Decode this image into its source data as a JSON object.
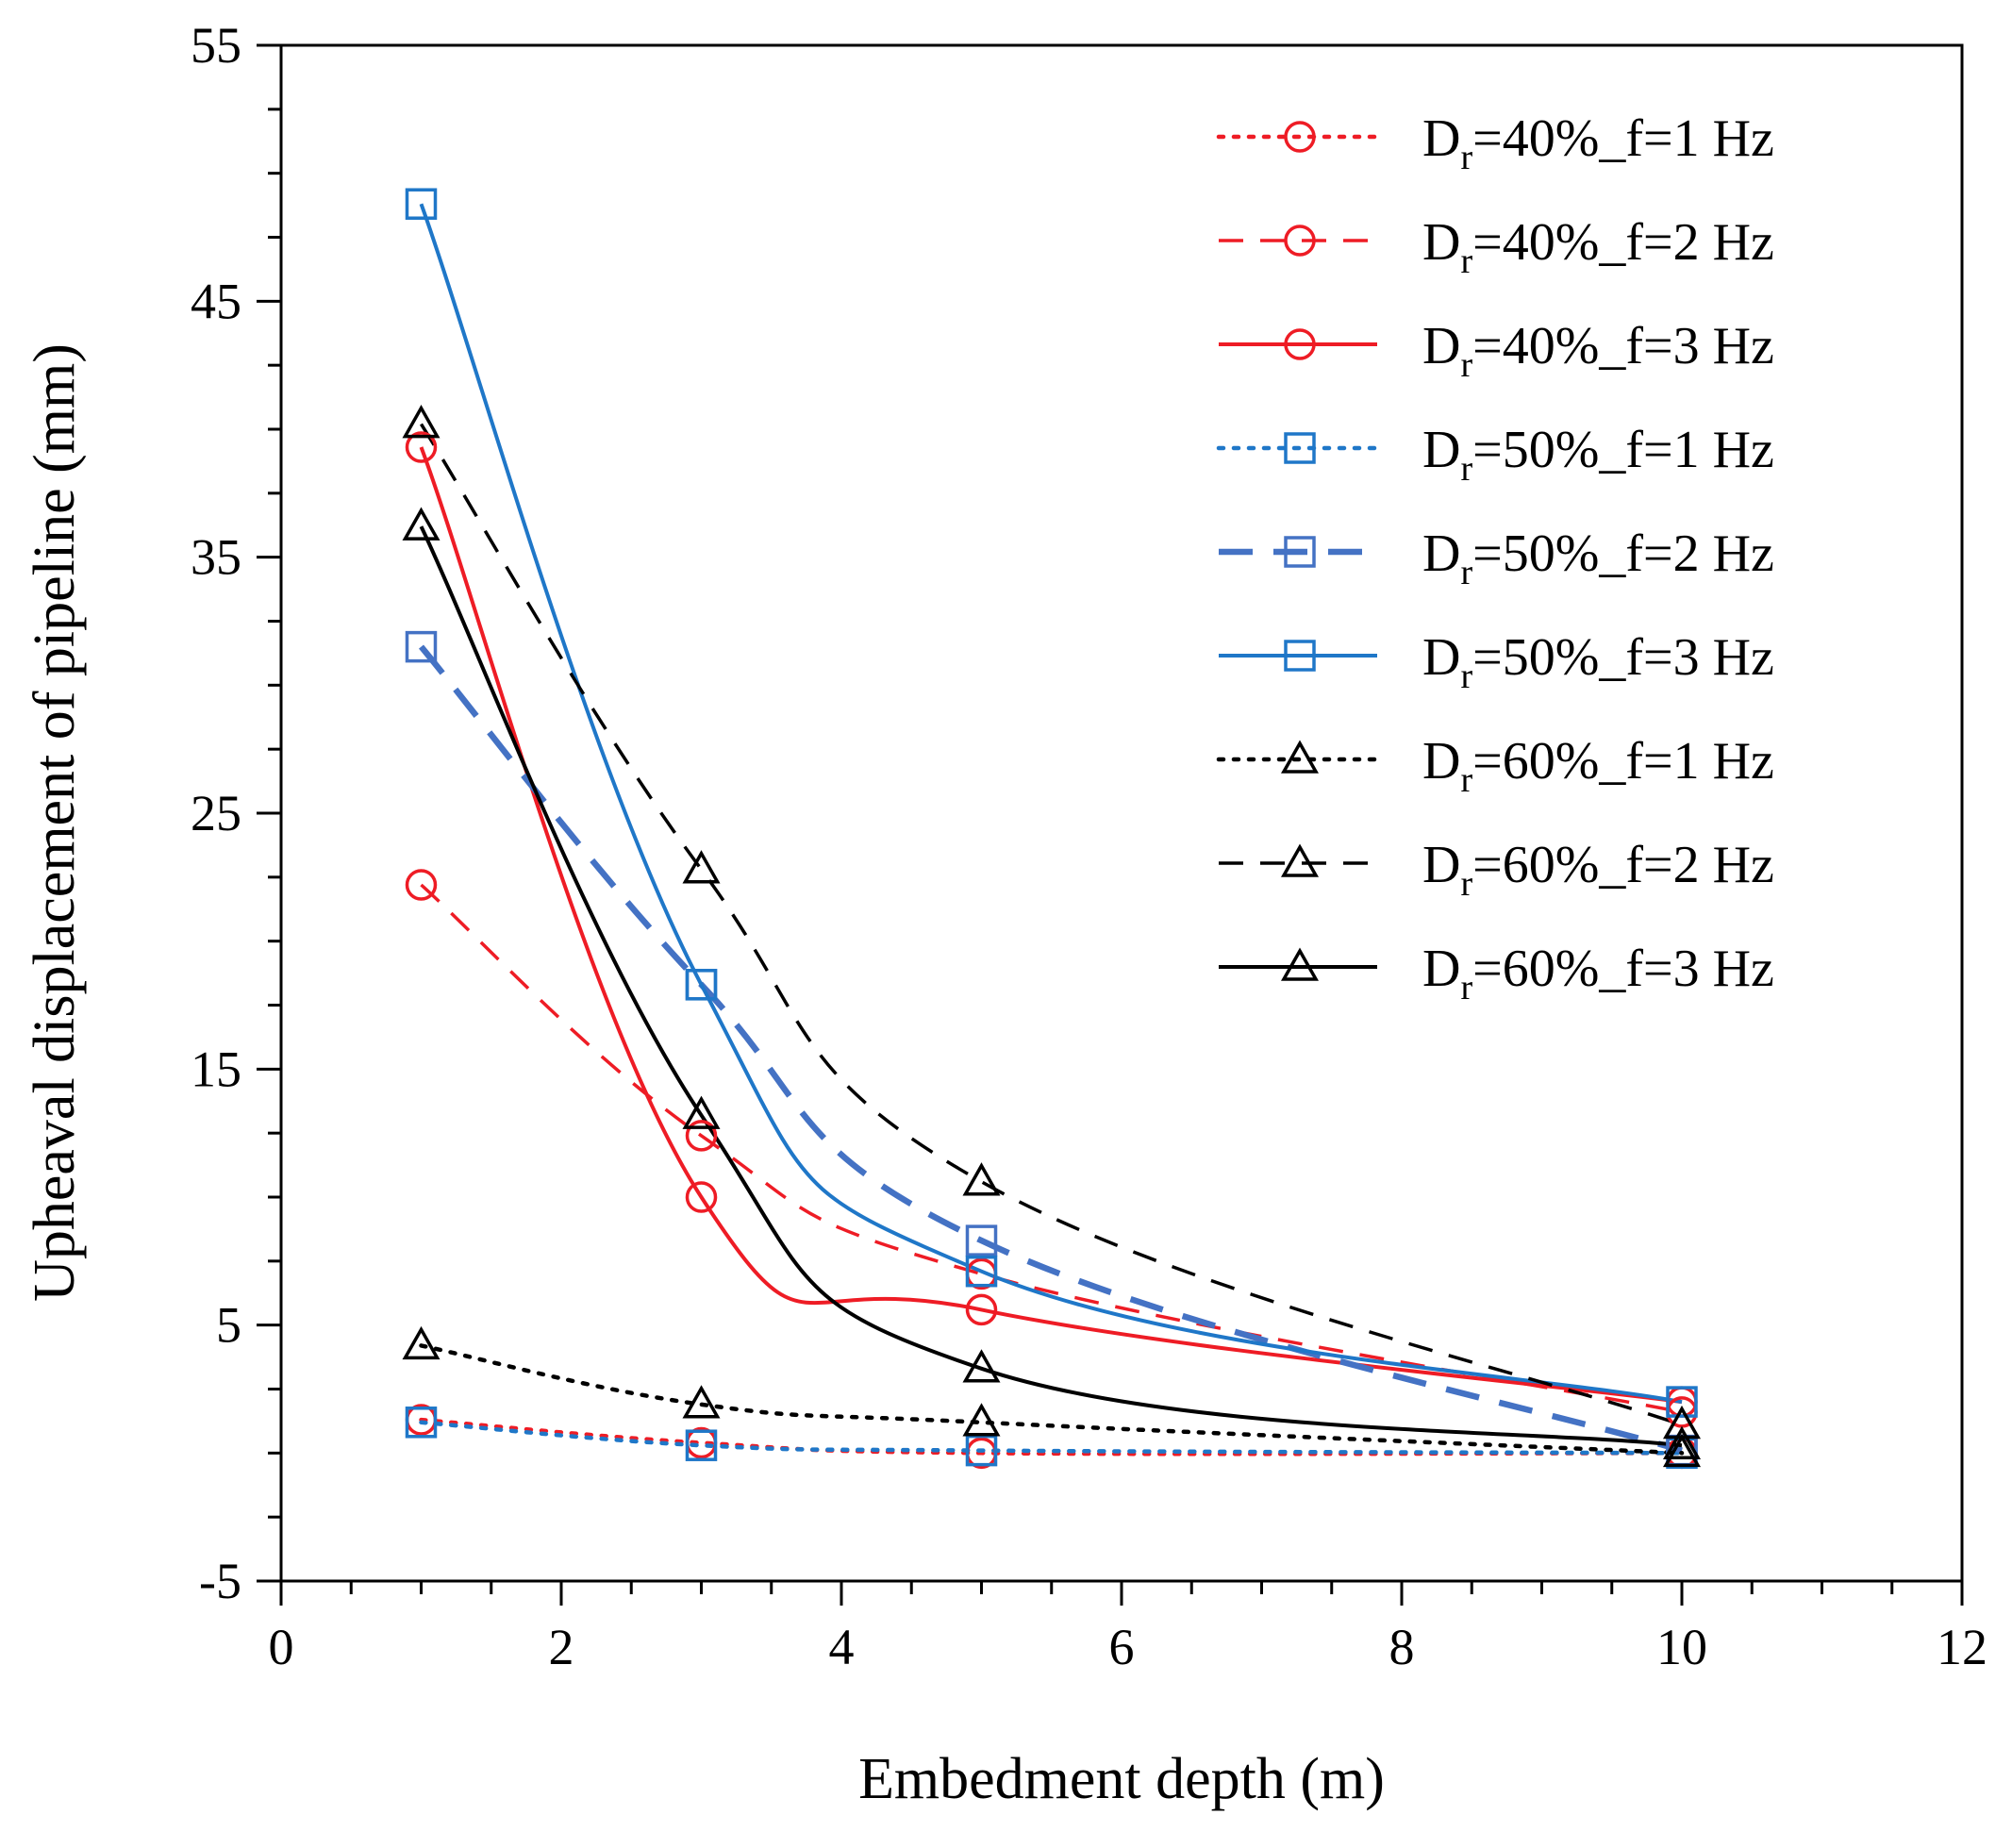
{
  "chart_data": {
    "type": "line",
    "title": "",
    "xlabel": "Embedment depth (m)",
    "ylabel": "Upheaval displacement of pipeline (mm)",
    "xlim": [
      0,
      12
    ],
    "ylim": [
      -5,
      55
    ],
    "xticks": [
      0,
      2,
      4,
      6,
      8,
      10,
      12
    ],
    "yticks": [
      -5,
      5,
      15,
      25,
      35,
      45,
      55
    ],
    "xtick_labels": [
      "0",
      "2",
      "4",
      "6",
      "8",
      "10",
      "12"
    ],
    "ytick_labels": [
      "-5",
      "5",
      "15",
      "25",
      "35",
      "45",
      "55"
    ],
    "grid": false,
    "legend_position": "top-right",
    "x": [
      1,
      3,
      5,
      10
    ],
    "series": [
      {
        "name": "Dr=40%_f=1 Hz",
        "legend_main": "D",
        "legend_sub": "r",
        "legend_rest": "=40%_f=1 Hz",
        "values": [
          1.3,
          0.4,
          0.0,
          0.0
        ],
        "color": "#ee1c25",
        "dash": "dotted",
        "marker": "circle"
      },
      {
        "name": "Dr=40%_f=2 Hz",
        "legend_main": "D",
        "legend_sub": "r",
        "legend_rest": "=40%_f=2 Hz",
        "values": [
          22.2,
          12.4,
          7.0,
          1.6
        ],
        "color": "#ee1c25",
        "dash": "dashed",
        "marker": "circle"
      },
      {
        "name": "Dr=40%_f=3 Hz",
        "legend_main": "D",
        "legend_sub": "r",
        "legend_rest": "=40%_f=3 Hz",
        "values": [
          39.3,
          10.0,
          5.6,
          2.0
        ],
        "color": "#ee1c25",
        "dash": "solid",
        "marker": "circle"
      },
      {
        "name": "Dr=50%_f=1 Hz",
        "legend_main": "D",
        "legend_sub": "r",
        "legend_rest": "=50%_f=1 Hz",
        "values": [
          1.2,
          0.3,
          0.1,
          0.0
        ],
        "color": "#1f77c8",
        "dash": "dotted",
        "marker": "square"
      },
      {
        "name": "Dr=50%_f=2 Hz",
        "legend_main": "D",
        "legend_sub": "r",
        "legend_rest": "=50%_f=2 Hz",
        "values": [
          31.5,
          18.3,
          8.3,
          0.1
        ],
        "color": "#4472c4",
        "dash": "dashed-thick",
        "marker": "square"
      },
      {
        "name": "Dr=50%_f=3 Hz",
        "legend_main": "D",
        "legend_sub": "r",
        "legend_rest": "=50%_f=3 Hz",
        "values": [
          48.8,
          18.3,
          7.1,
          2.0
        ],
        "color": "#1f77c8",
        "dash": "solid",
        "marker": "square"
      },
      {
        "name": "Dr=60%_f=1 Hz",
        "legend_main": "D",
        "legend_sub": "r",
        "legend_rest": "=60%_f=1 Hz",
        "values": [
          4.2,
          1.9,
          1.2,
          0.0
        ],
        "color": "#000000",
        "dash": "dotted",
        "marker": "triangle"
      },
      {
        "name": "Dr=60%_f=2 Hz",
        "legend_main": "D",
        "legend_sub": "r",
        "legend_rest": "=60%_f=2 Hz",
        "values": [
          40.2,
          22.8,
          10.6,
          1.1
        ],
        "color": "#000000",
        "dash": "dashed",
        "marker": "triangle"
      },
      {
        "name": "Dr=60%_f=3 Hz",
        "legend_main": "D",
        "legend_sub": "r",
        "legend_rest": "=60%_f=3 Hz",
        "values": [
          36.2,
          13.2,
          3.3,
          0.3
        ],
        "color": "#000000",
        "dash": "solid",
        "marker": "triangle"
      }
    ]
  }
}
